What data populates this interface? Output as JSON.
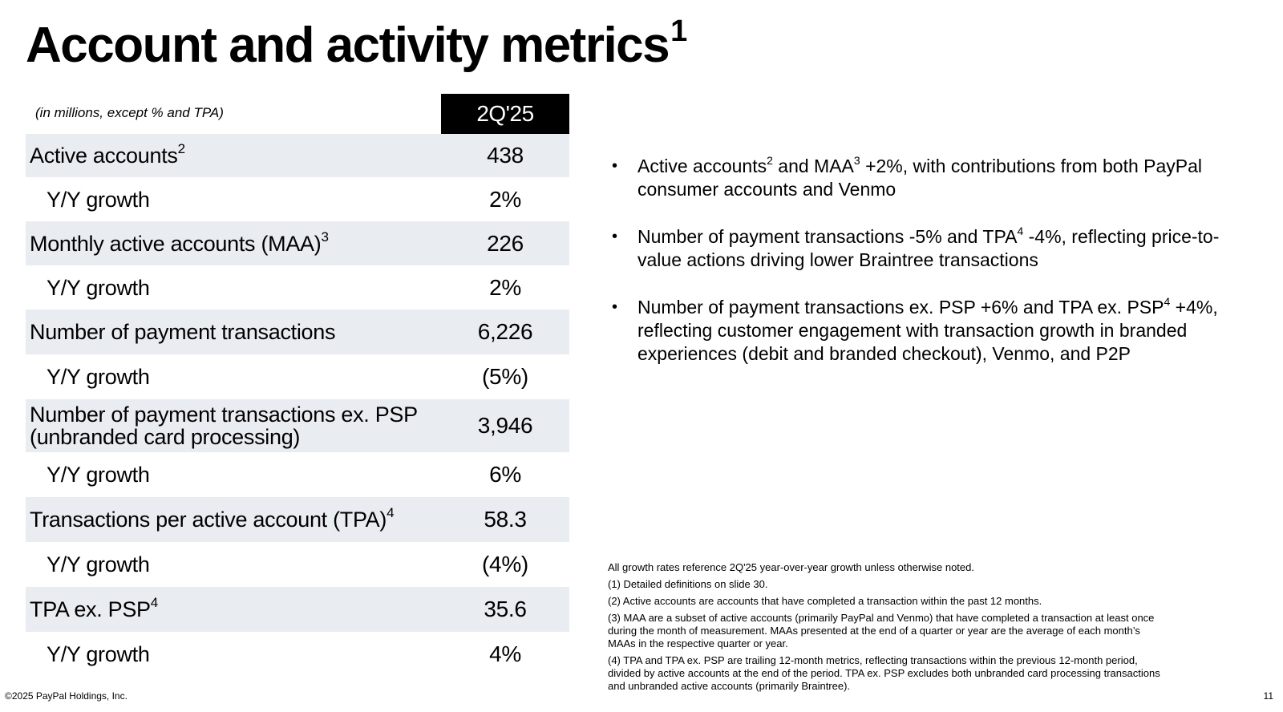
{
  "title": {
    "text": "Account and activity metrics",
    "sup": "1"
  },
  "table": {
    "units_note": "(in millions, except % and TPA)",
    "column_header": "2Q'25",
    "rows": [
      {
        "label": "Active accounts",
        "sup": "2",
        "value": "438"
      },
      {
        "label": "Y/Y growth",
        "sup": "",
        "value": "2%"
      },
      {
        "label": "Monthly active accounts (MAA)",
        "sup": "3",
        "value": "226"
      },
      {
        "label": "Y/Y growth",
        "sup": "",
        "value": "2%"
      },
      {
        "label": "Number of payment transactions",
        "sup": "",
        "value": "6,226"
      },
      {
        "label": "Y/Y growth",
        "sup": "",
        "value": "(5%)"
      },
      {
        "label": "Number of payment transactions ex. PSP",
        "label_line2": "(unbranded card processing)",
        "sup": "",
        "value": "3,946"
      },
      {
        "label": "Y/Y growth",
        "sup": "",
        "value": "6%"
      },
      {
        "label": "Transactions per active account (TPA)",
        "sup": "4",
        "value": "58.3"
      },
      {
        "label": "Y/Y growth",
        "sup": "",
        "value": "(4%)"
      },
      {
        "label": "TPA ex. PSP",
        "sup": "4",
        "value": "35.6"
      },
      {
        "label": "Y/Y growth",
        "sup": "",
        "value": "4%"
      }
    ]
  },
  "bullets": [
    {
      "p1": "Active accounts",
      "s1": "2",
      "p2": " and MAA",
      "s2": "3",
      "p3": " +2%, with contributions from both PayPal consumer accounts and Venmo"
    },
    {
      "p1": "Number of payment transactions -5% and TPA",
      "s1": "4",
      "p2": " -4%, reflecting price-to-value actions driving lower Braintree transactions"
    },
    {
      "p1": "Number of payment transactions ex. PSP +6% and TPA ex. PSP",
      "s1": "4",
      "p2": " +4%, reflecting customer engagement with transaction growth in branded experiences (debit and branded checkout), Venmo, and P2P"
    }
  ],
  "footnotes": [
    "All growth rates reference 2Q'25 year-over-year growth unless otherwise noted.",
    "(1) Detailed definitions on slide 30.",
    "(2) Active accounts are accounts that have completed a transaction within the past 12 months.",
    "(3) MAA are a subset of active accounts (primarily PayPal and Venmo) that have completed a transaction at least once during the month of measurement. MAAs presented at the end of a quarter or year are the average of each month’s MAAs in the respective quarter or year.",
    "(4) TPA and TPA ex. PSP are trailing 12-month metrics, reflecting transactions within the previous 12-month period, divided by active accounts at the end of the period. TPA ex. PSP excludes both unbranded card processing transactions and unbranded active accounts (primarily Braintree)."
  ],
  "footer": {
    "copyright": "©2025 PayPal Holdings, Inc.",
    "page_number": "11"
  },
  "colors": {
    "shaded_row": "#e9ecf0",
    "header_bg": "#000000",
    "header_text": "#ffffff"
  }
}
